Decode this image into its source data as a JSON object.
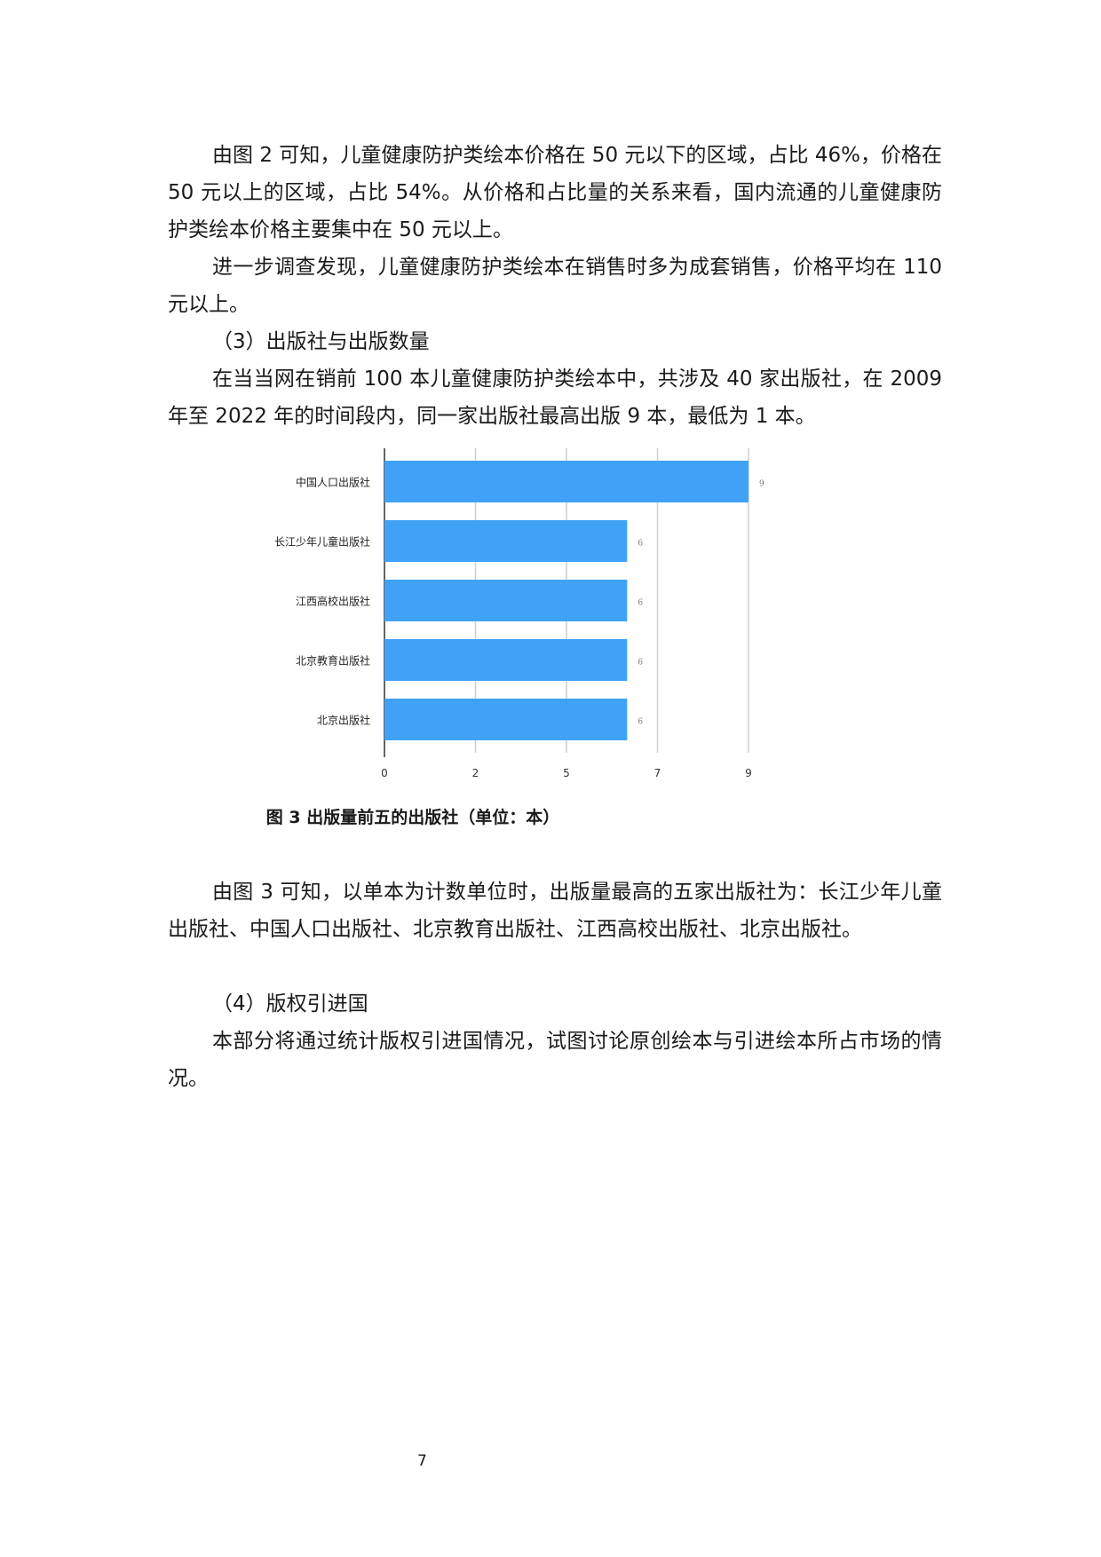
{
  "paragraphs": [
    "由图 2 可知，儿童健康防护类绘本价格在 50 元以下的区域，占比 46%，价格在 50 元以上的区域，占比 54%。从价格和占比量的关系来看，国内流通的儿童健康防护类绘本价格主要集中在 50 元以上。",
    "进一步调查发现，儿童健康防护类绘本在销售时多为成套销售，价格平均在 110 元以上。",
    "（3）出版社与出版数量",
    "在当当网在销前 100 本儿童健康防护类绘本中，共涉及 40 家出版社，在 2009 年至 2022 年的时间段内，同一家出版社最高出版 9 本，最低为 1 本。",
    "由图 3 可知，以单本为计数单位时，出版量最高的五家出版社为：长江少年儿童出版社、中国人口出版社、北京教育出版社、江西高校出版社、北京出版社。",
    "（4）版权引进国",
    "本部分将通过统计版权引进国情况，试图讨论原创绘本与引进绘本所占市场的情况。"
  ],
  "caption": "图 3  出版量前五的出版社（单位：本）",
  "page_number": "7",
  "chart_data": {
    "type": "bar",
    "orientation": "horizontal",
    "categories": [
      "中国人口出版社",
      "长江少年儿童出版社",
      "江西高校出版社",
      "北京教育出版社",
      "北京出版社"
    ],
    "values": [
      9,
      6,
      6,
      6,
      6
    ],
    "data_labels": [
      "9",
      "6",
      "6",
      "6",
      "6"
    ],
    "xlim": [
      0,
      9
    ],
    "x_ticks": [
      0,
      2.25,
      4.5,
      6.75,
      9
    ],
    "x_tick_labels": [
      "0",
      "2",
      "5",
      "7",
      "9"
    ],
    "grid": "vertical",
    "bar_color": "#3fa2f7"
  }
}
